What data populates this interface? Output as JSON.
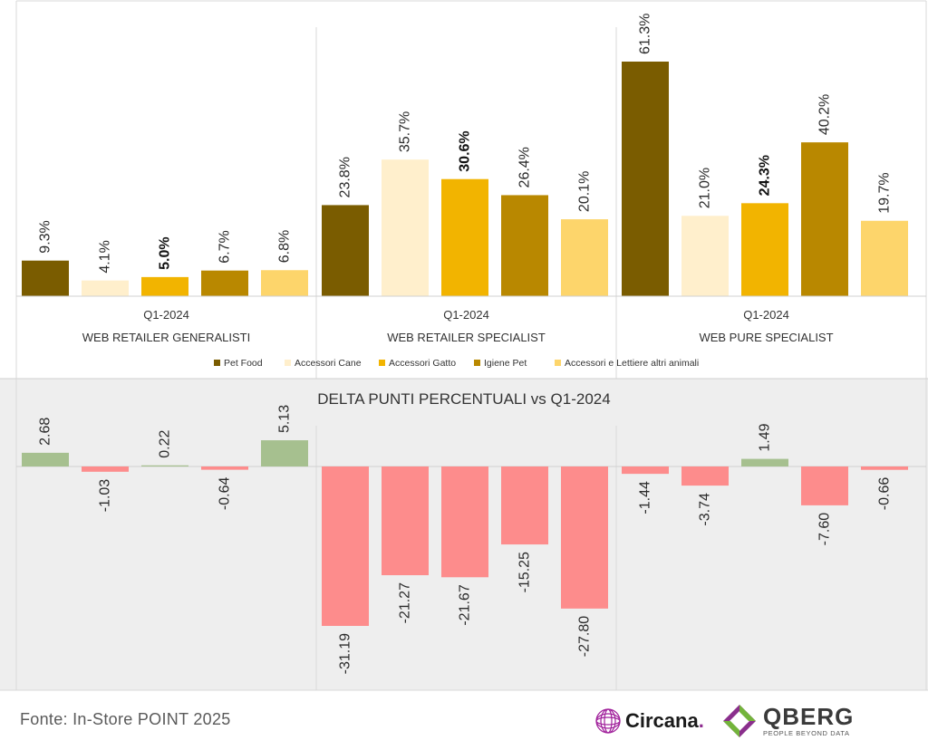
{
  "chart_data": [
    {
      "type": "bar",
      "groups": [
        {
          "period": "Q1-2024",
          "name": "WEB RETAILER GENERALISTI"
        },
        {
          "period": "Q1-2024",
          "name": "WEB RETAILER SPECIALIST"
        },
        {
          "period": "Q1-2024",
          "name": "WEB PURE SPECIALIST"
        }
      ],
      "series": [
        {
          "name": "Pet Food",
          "color": "#7a5c00",
          "values": [
            9.3,
            23.8,
            61.3
          ],
          "labels": [
            "9.3%",
            "23.8%",
            "61.3%"
          ]
        },
        {
          "name": "Accessori Cane",
          "color": "#ffefcc",
          "values": [
            4.1,
            35.7,
            21.0
          ],
          "labels": [
            "4.1%",
            "35.7%",
            "21.0%"
          ]
        },
        {
          "name": "Accessori Gatto",
          "color": "#f2b400",
          "values": [
            5.0,
            30.6,
            24.3
          ],
          "labels": [
            "5.0%",
            "30.6%",
            "24.3%"
          ]
        },
        {
          "name": "Igiene Pet",
          "color": "#b98800",
          "values": [
            6.7,
            26.4,
            40.2
          ],
          "labels": [
            "6.7%",
            "26.4%",
            "40.2%"
          ]
        },
        {
          "name": "Accessori e Lettiere altri animali",
          "color": "#fdd56b",
          "values": [
            6.8,
            20.1,
            19.7
          ],
          "labels": [
            "6.8%",
            "20.1%",
            "19.7%"
          ]
        }
      ],
      "ylim": [
        0,
        62
      ]
    },
    {
      "type": "bar",
      "title": "DELTA PUNTI PERCENTUALI vs Q1-2024",
      "positive_color": "#a6c08f",
      "negative_color": "#fd8c8c",
      "series_values": [
        [
          2.68,
          -31.19,
          -1.44
        ],
        [
          -1.03,
          -21.27,
          -3.74
        ],
        [
          0.22,
          -21.67,
          1.49
        ],
        [
          -0.64,
          -15.25,
          -7.6
        ],
        [
          5.13,
          -27.8,
          -0.66
        ]
      ],
      "series_labels": [
        [
          "2.68",
          "-31.19",
          "-1.44"
        ],
        [
          "-1.03",
          "-21.27",
          "-3.74"
        ],
        [
          "0.22",
          "-21.67",
          "1.49"
        ],
        [
          "-0.64",
          "-15.25",
          "-7.60"
        ],
        [
          "5.13",
          "-27.80",
          "-0.66"
        ]
      ]
    }
  ],
  "footer": {
    "source": "Fonte: In-Store POINT 2025",
    "logo1_name": "Circana",
    "logo1_dot": ".",
    "logo2_name": "QBERG",
    "logo2_tagline": "PEOPLE BEYOND DATA"
  }
}
